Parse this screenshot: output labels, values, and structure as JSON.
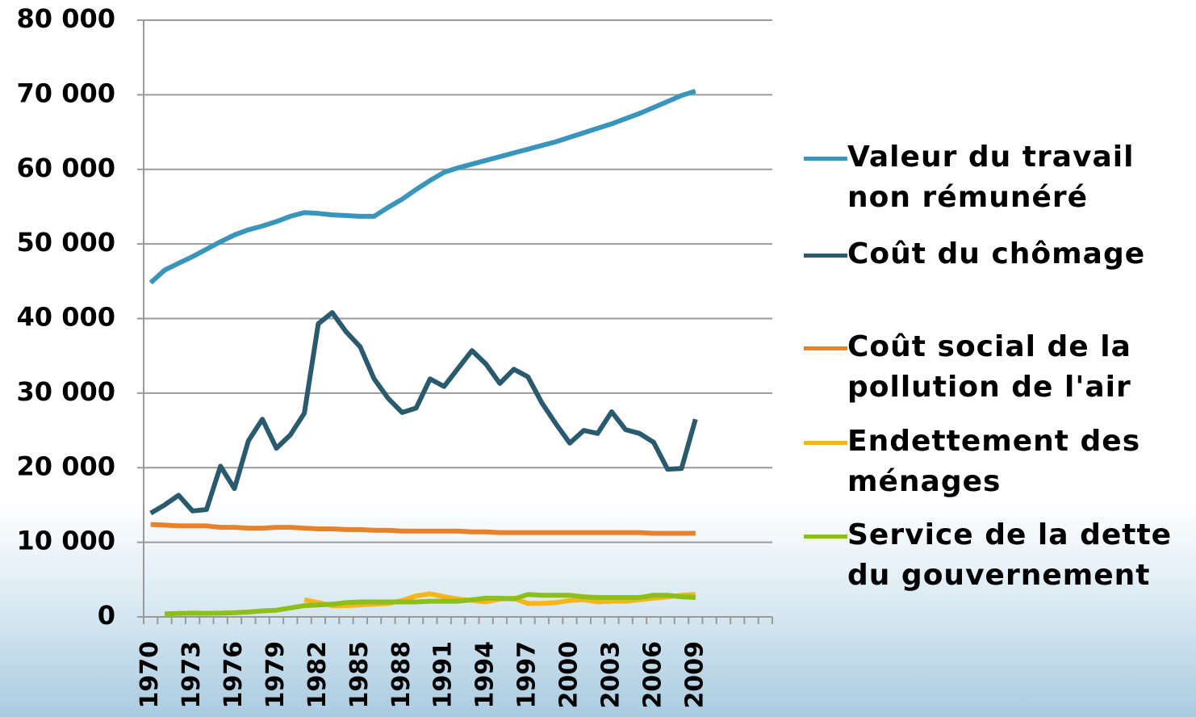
{
  "chart_data": {
    "type": "line",
    "categories": [
      "1970",
      null,
      null,
      "1973",
      null,
      null,
      "1976",
      null,
      null,
      "1979",
      null,
      null,
      "1982",
      null,
      null,
      "1985",
      null,
      null,
      "1988",
      null,
      null,
      "1991",
      null,
      null,
      "1994",
      null,
      null,
      "1997",
      null,
      null,
      "2000",
      null,
      null,
      "2003",
      null,
      null,
      "2006",
      null,
      null,
      "2009",
      null,
      null,
      null,
      null,
      null
    ],
    "series": [
      {
        "name": "Valeur du travail non rémunéré",
        "color": "#3a95bd",
        "values": [
          44800,
          46500,
          47400,
          48300,
          49300,
          50300,
          51200,
          51900,
          52400,
          53000,
          53700,
          54200,
          54100,
          53900,
          53800,
          53700,
          53700,
          54900,
          56000,
          57300,
          58500,
          59600,
          60200,
          60700,
          61200,
          61700,
          62200,
          62700,
          63200,
          63700,
          64300,
          64900,
          65500,
          66100,
          66800,
          67500,
          68300,
          69100,
          69900,
          70500,
          null,
          null,
          null,
          null,
          null
        ]
      },
      {
        "name": "Coût du chômage",
        "color": "#2a5a6e",
        "values": [
          13900,
          15000,
          16300,
          14200,
          14400,
          20200,
          17200,
          23600,
          26500,
          22600,
          24400,
          27300,
          39300,
          40800,
          38200,
          36200,
          31900,
          29300,
          27400,
          28000,
          31900,
          30900,
          33300,
          35700,
          33900,
          31300,
          33200,
          32200,
          28700,
          25900,
          23300,
          25000,
          24600,
          27500,
          25100,
          24600,
          23400,
          19800,
          19900,
          26500,
          null,
          null,
          null,
          null,
          null
        ]
      },
      {
        "name": "Coût social de la pollution de l'air",
        "color": "#e8812c",
        "values": [
          12400,
          12300,
          12200,
          12200,
          12200,
          12000,
          12000,
          11900,
          11900,
          12000,
          12000,
          11900,
          11800,
          11800,
          11700,
          11700,
          11600,
          11600,
          11500,
          11500,
          11500,
          11500,
          11500,
          11400,
          11400,
          11300,
          11300,
          11300,
          11300,
          11300,
          11300,
          11300,
          11300,
          11300,
          11300,
          11300,
          11200,
          11200,
          11200,
          11200,
          null,
          null,
          null,
          null,
          null
        ]
      },
      {
        "name": "Endettement des ménages",
        "color": "#f7b519",
        "values": [
          null,
          null,
          null,
          null,
          null,
          null,
          null,
          null,
          null,
          null,
          null,
          2300,
          1900,
          1500,
          1500,
          1600,
          1700,
          1800,
          2200,
          2800,
          3100,
          2700,
          2400,
          2200,
          2000,
          2400,
          2500,
          1800,
          1800,
          1900,
          2200,
          2300,
          2000,
          2100,
          2100,
          2300,
          2500,
          2700,
          2900,
          3000,
          null,
          null,
          null,
          null,
          null
        ]
      },
      {
        "name": "Service de la dette du gouvernement",
        "color": "#8cbf1a",
        "values": [
          null,
          400,
          450,
          500,
          480,
          500,
          550,
          650,
          800,
          900,
          1200,
          1500,
          1600,
          1700,
          1900,
          2000,
          2000,
          2000,
          2000,
          2000,
          2100,
          2100,
          2100,
          2300,
          2500,
          2500,
          2400,
          3000,
          2900,
          2900,
          2900,
          2700,
          2600,
          2600,
          2600,
          2600,
          2900,
          2900,
          2700,
          2600,
          null,
          null,
          null,
          null,
          null
        ]
      }
    ],
    "ylim": [
      0,
      80000
    ],
    "yticks": [
      0,
      {
        "value": 10000,
        "label": "10 000"
      },
      {
        "value": 20000,
        "label": "20 000"
      },
      {
        "value": 30000,
        "label": "30 000"
      },
      {
        "value": 40000,
        "label": "40 000"
      },
      {
        "value": 50000,
        "label": "50 000"
      },
      {
        "value": 60000,
        "label": "60 000"
      },
      {
        "value": 70000,
        "label": "70 000"
      },
      {
        "value": 80000,
        "label": "80 000"
      }
    ],
    "grid": true,
    "legend": "right"
  }
}
